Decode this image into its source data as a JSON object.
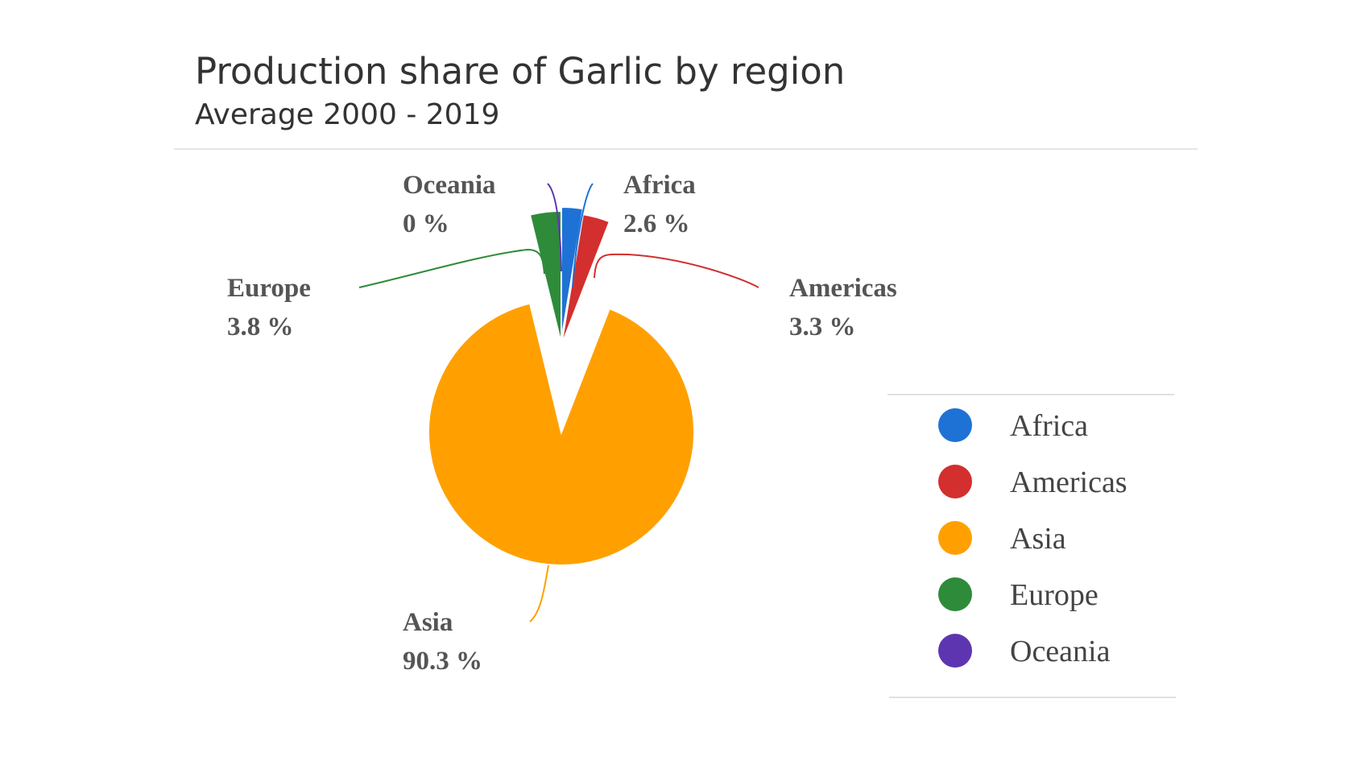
{
  "chart_data": {
    "type": "pie",
    "title": "Production share of Garlic by region",
    "subtitle": "Average 2000 - 2019",
    "slices": [
      {
        "name": "Africa",
        "value": 2.6,
        "label": "2.6 %",
        "color": "#1E72D6"
      },
      {
        "name": "Americas",
        "value": 3.3,
        "label": "3.3 %",
        "color": "#D32F2F"
      },
      {
        "name": "Asia",
        "value": 90.3,
        "label": "90.3 %",
        "color": "#FFA000"
      },
      {
        "name": "Europe",
        "value": 3.8,
        "label": "3.8 %",
        "color": "#2E8B3A"
      },
      {
        "name": "Oceania",
        "value": 0,
        "label": "0 %",
        "color": "#5E35B1"
      }
    ],
    "legend": {
      "placement": "right",
      "entries": [
        "Africa",
        "Americas",
        "Asia",
        "Europe",
        "Oceania"
      ]
    }
  }
}
